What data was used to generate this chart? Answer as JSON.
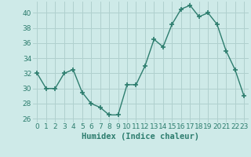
{
  "x": [
    0,
    1,
    2,
    3,
    4,
    5,
    6,
    7,
    8,
    9,
    10,
    11,
    12,
    13,
    14,
    15,
    16,
    17,
    18,
    19,
    20,
    21,
    22,
    23
  ],
  "y": [
    32,
    30,
    30,
    32,
    32.5,
    29.5,
    28,
    27.5,
    26.5,
    26.5,
    30.5,
    30.5,
    33,
    36.5,
    35.5,
    38.5,
    40.5,
    41,
    39.5,
    40,
    38.5,
    35,
    32.5,
    29
  ],
  "line_color": "#2d7d6e",
  "marker": "+",
  "marker_size": 4,
  "marker_lw": 1.2,
  "bg_color": "#ceeae8",
  "grid_color": "#b0d0ce",
  "xlabel": "Humidex (Indice chaleur)",
  "ylim": [
    25.5,
    41.5
  ],
  "xlim": [
    -0.5,
    23.5
  ],
  "yticks": [
    26,
    28,
    30,
    32,
    34,
    36,
    38,
    40
  ],
  "xticks": [
    0,
    1,
    2,
    3,
    4,
    5,
    6,
    7,
    8,
    9,
    10,
    11,
    12,
    13,
    14,
    15,
    16,
    17,
    18,
    19,
    20,
    21,
    22,
    23
  ],
  "tick_fontsize": 6.5,
  "xlabel_fontsize": 7.5,
  "tick_color": "#2d7d6e",
  "line_width": 1.0
}
